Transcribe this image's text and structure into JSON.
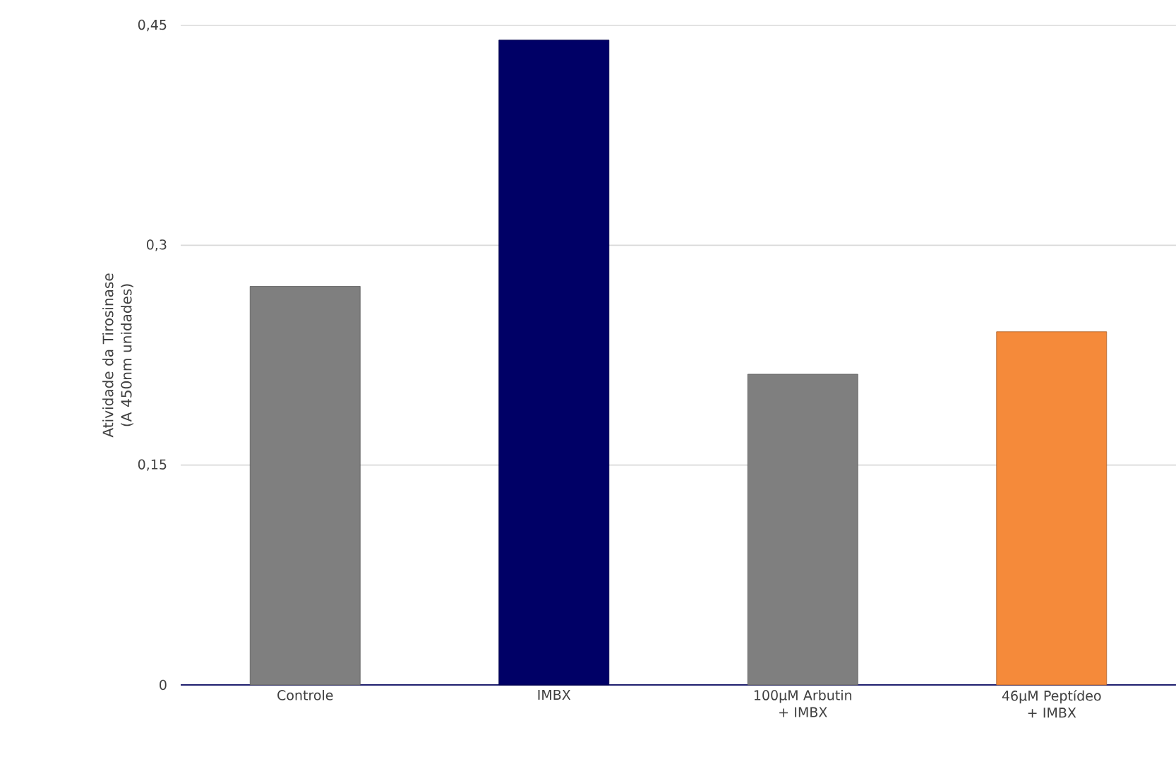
{
  "chart_data": {
    "type": "bar",
    "ylabel": "Atividade da Tirosinase (A 450nm unidades)",
    "categories": [
      "Controle",
      "IMBX",
      "100µM Arbutin + IMBX",
      "46µM Peptídeo + IMBX"
    ],
    "values": [
      0.272,
      0.44,
      0.212,
      0.241
    ],
    "colors": [
      "#7f7f7f",
      "#000066",
      "#7f7f7f",
      "#f58a3a"
    ],
    "ylim": [
      0,
      0.45
    ],
    "yticks": [
      {
        "value": 0,
        "label": "0"
      },
      {
        "value": 0.15,
        "label": "0,15"
      },
      {
        "value": 0.3,
        "label": "0,3"
      },
      {
        "value": 0.45,
        "label": "0,45"
      }
    ],
    "grid": "y"
  }
}
